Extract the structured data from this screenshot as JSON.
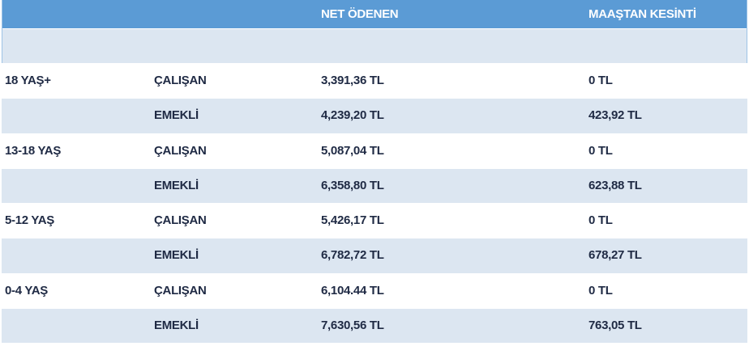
{
  "header": {
    "columns": [
      "NET ÖDENEN",
      "MAAŞTAN KESİNTİ"
    ]
  },
  "table": {
    "rows": [
      {
        "group": "18 YAŞ+",
        "type": "ÇALIŞAN",
        "net": "3,391,36 TL",
        "deduction": "0 TL"
      },
      {
        "type": "EMEKLİ",
        "net": "4,239,20 TL",
        "deduction": "423,92 TL"
      },
      {
        "group": "13-18 YAŞ",
        "type": "ÇALIŞAN",
        "net": "5,087,04 TL",
        "deduction": "0 TL"
      },
      {
        "type": "EMEKLİ",
        "net": "6,358,80 TL",
        "deduction": "623,88 TL"
      },
      {
        "group": "5-12 YAŞ",
        "type": "ÇALIŞAN",
        "net": "5,426,17 TL",
        "deduction": "0 TL"
      },
      {
        "type": "EMEKLİ",
        "net": "6,782,72 TL",
        "deduction": "678,27 TL"
      },
      {
        "group": "0-4 YAŞ",
        "type": "ÇALIŞAN",
        "net": "6,104.44 TL",
        "deduction": "0 TL"
      },
      {
        "type": "EMEKLİ",
        "net": "7,630,56 TL",
        "deduction": "763,05 TL"
      }
    ]
  }
}
